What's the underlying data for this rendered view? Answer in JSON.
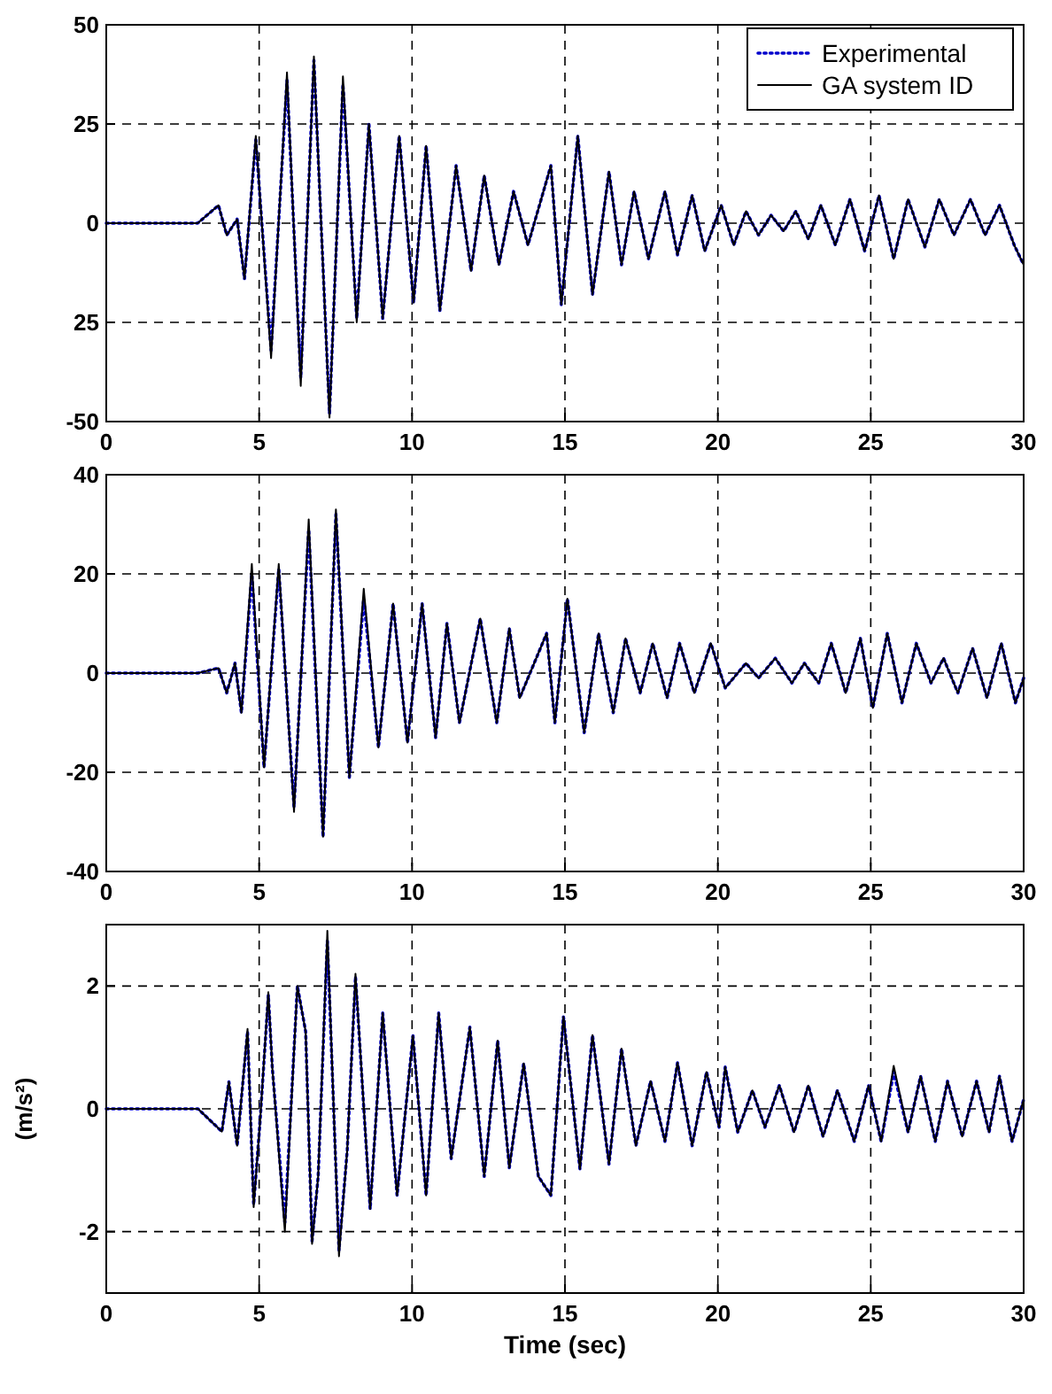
{
  "chart_data": [
    {
      "type": "line",
      "x": [
        0,
        1,
        2,
        2.99,
        3.67,
        3.94,
        4.28,
        4.52,
        4.89,
        5.39,
        5.91,
        6.36,
        6.79,
        7.3,
        7.74,
        8.19,
        8.59,
        9.04,
        9.58,
        10.05,
        10.46,
        10.91,
        11.44,
        11.93,
        12.36,
        12.84,
        13.32,
        13.79,
        14.54,
        14.88,
        15.42,
        15.9,
        16.44,
        16.85,
        17.26,
        17.73,
        18.27,
        18.68,
        19.16,
        19.57,
        20.11,
        20.52,
        20.92,
        21.33,
        21.74,
        22.15,
        22.55,
        22.96,
        23.37,
        23.84,
        24.32,
        24.8,
        25.27,
        25.75,
        26.22,
        26.77,
        27.24,
        27.72,
        28.26,
        28.74,
        29.21,
        29.69,
        30
      ],
      "series": [
        {
          "name": "Experimental",
          "color": "#0000cc",
          "line_style": "dotted",
          "values": [
            0,
            0,
            0,
            0,
            4.5,
            -3,
            1,
            -14,
            21,
            -32,
            36,
            -39,
            41,
            -48,
            35,
            -24,
            25,
            -24,
            22,
            -20,
            19.5,
            -22,
            14.5,
            -12,
            12,
            -10.5,
            8,
            -5.5,
            14.5,
            -20.5,
            22,
            -18,
            13,
            -10.5,
            8,
            -9,
            8,
            -8,
            7,
            -7,
            4.5,
            -5.5,
            3,
            -3,
            2,
            -2,
            3,
            -4,
            4.5,
            -5.5,
            6,
            -7,
            7,
            -9,
            6,
            -6,
            6,
            -3,
            6,
            -3,
            4.5,
            -5.5,
            -10.5
          ]
        },
        {
          "name": "GA system ID",
          "color": "#000000",
          "line_style": "solid",
          "values": [
            0,
            0,
            0,
            0,
            4.5,
            -3,
            1,
            -14,
            22,
            -34,
            38,
            -41,
            42,
            -49,
            37,
            -25,
            25,
            -24,
            22,
            -20,
            19.5,
            -22,
            14.5,
            -12,
            12,
            -10.5,
            8,
            -5.5,
            14.5,
            -20.5,
            22,
            -18,
            13,
            -10.5,
            8,
            -9,
            8,
            -8,
            7,
            -7,
            4.5,
            -5.5,
            3,
            -3,
            2,
            -2,
            3,
            -4,
            4.5,
            -5.5,
            6,
            -7,
            7,
            -9,
            6,
            -6,
            6,
            -3,
            6,
            -3,
            4.5,
            -5.5,
            -10.5
          ]
        }
      ],
      "xlim": [
        0,
        30
      ],
      "xticks": [
        0,
        5,
        10,
        15,
        20,
        25,
        30
      ],
      "ylim": [
        -50,
        50
      ],
      "yticks": [
        50,
        25,
        0,
        {
          "value": -25,
          "label": "25"
        },
        -50
      ],
      "grid": true,
      "legend": "top right"
    },
    {
      "type": "line",
      "x": [
        0,
        1,
        2,
        3,
        3.67,
        3.94,
        4.21,
        4.42,
        4.76,
        5.16,
        5.64,
        6.14,
        6.62,
        7.09,
        7.51,
        7.95,
        8.42,
        8.9,
        9.38,
        9.85,
        10.33,
        10.77,
        11.14,
        11.55,
        12.23,
        12.77,
        13.18,
        13.52,
        14.4,
        14.67,
        15.08,
        15.63,
        16.1,
        16.58,
        16.98,
        17.46,
        17.87,
        18.34,
        18.75,
        19.23,
        19.77,
        20.24,
        20.92,
        21.33,
        21.88,
        22.42,
        22.83,
        23.3,
        23.71,
        24.18,
        24.66,
        25.07,
        25.54,
        26.02,
        26.49,
        26.97,
        27.38,
        27.85,
        28.33,
        28.8,
        29.27,
        29.73,
        30
      ],
      "series": [
        {
          "color": "#0000cc",
          "line_style": "dotted",
          "values": [
            0,
            0,
            0,
            0,
            1,
            -4,
            2,
            -8,
            20,
            -19,
            21,
            -27,
            29,
            -33,
            32,
            -21,
            15,
            -15,
            14,
            -14,
            14,
            -13,
            10,
            -10,
            11,
            -10,
            9,
            -5,
            8,
            -10,
            15,
            -12,
            8,
            -8,
            7,
            -4,
            6,
            -5,
            6,
            -4,
            6,
            -3,
            2,
            -1,
            3,
            -2,
            2,
            -2,
            6,
            -4,
            7,
            -7,
            8,
            -6,
            6,
            -2,
            3,
            -4,
            5,
            -5,
            6,
            -6,
            -1
          ]
        },
        {
          "color": "#000000",
          "line_style": "solid",
          "values": [
            0,
            0,
            0,
            0,
            1,
            -4,
            2,
            -8,
            22,
            -19,
            22,
            -28,
            31,
            -33,
            33,
            -21,
            17,
            -15,
            14,
            -14,
            14,
            -13,
            10,
            -10,
            11,
            -10,
            9,
            -5,
            8,
            -10,
            15,
            -12,
            8,
            -8,
            7,
            -4,
            6,
            -5,
            6,
            -4,
            6,
            -3,
            2,
            -1,
            3,
            -2,
            2,
            -2,
            6,
            -4,
            7,
            -7,
            8,
            -6,
            6,
            -2,
            3,
            -4,
            5,
            -5,
            6,
            -6,
            -1
          ]
        }
      ],
      "xlim": [
        0,
        30
      ],
      "xticks": [
        0,
        5,
        10,
        15,
        20,
        25,
        30
      ],
      "ylim": [
        -40,
        40
      ],
      "yticks": [
        40,
        20,
        0,
        -20,
        -40
      ],
      "grid": true
    },
    {
      "type": "line",
      "x": [
        0,
        1,
        2,
        3,
        3.78,
        4.01,
        4.28,
        4.62,
        4.82,
        5.03,
        5.3,
        5.43,
        5.84,
        6.25,
        6.52,
        6.73,
        6.93,
        7.23,
        7.61,
        7.88,
        8.15,
        8.63,
        9.04,
        9.51,
        10.03,
        10.46,
        10.87,
        11.28,
        11.89,
        12.36,
        12.8,
        13.18,
        13.65,
        14.13,
        14.54,
        14.95,
        15.49,
        15.9,
        16.44,
        16.85,
        17.32,
        17.8,
        18.27,
        18.68,
        19.16,
        19.63,
        20.04,
        20.24,
        20.65,
        21.13,
        21.54,
        22.01,
        22.49,
        22.96,
        23.44,
        23.91,
        24.46,
        24.93,
        25.34,
        25.75,
        26.22,
        26.63,
        27.11,
        27.51,
        27.99,
        28.46,
        28.87,
        29.21,
        29.62,
        30
      ],
      "series": [
        {
          "color": "#0000cc",
          "line_style": "dotted",
          "values": [
            0,
            0,
            0,
            0,
            -0.37,
            0.44,
            -0.6,
            1.26,
            -1.56,
            -0.2,
            1.85,
            0.67,
            -1.85,
            2,
            1.26,
            -2.15,
            -1.1,
            2.74,
            -2.3,
            -0.67,
            2.15,
            -1.63,
            1.56,
            -1.41,
            1.19,
            -1.41,
            1.56,
            -0.81,
            1.33,
            -1.1,
            1.11,
            -0.96,
            0.74,
            -1.1,
            -1.41,
            1.5,
            -0.98,
            1.2,
            -0.9,
            0.98,
            -0.6,
            0.45,
            -0.53,
            0.75,
            -0.6,
            0.6,
            -0.3,
            0.68,
            -0.38,
            0.3,
            -0.3,
            0.38,
            -0.38,
            0.38,
            -0.45,
            0.3,
            -0.53,
            0.38,
            -0.53,
            0.6,
            -0.38,
            0.53,
            -0.53,
            0.45,
            -0.45,
            0.45,
            -0.38,
            0.53,
            -0.53,
            0.15
          ]
        },
        {
          "color": "#000000",
          "line_style": "solid",
          "values": [
            0,
            0,
            0,
            0,
            -0.37,
            0.44,
            -0.6,
            1.3,
            -1.6,
            -0.2,
            1.9,
            0.67,
            -2,
            2,
            1.26,
            -2.2,
            -1.1,
            2.9,
            -2.4,
            -0.67,
            2.2,
            -1.63,
            1.56,
            -1.41,
            1.19,
            -1.41,
            1.56,
            -0.81,
            1.33,
            -1.1,
            1.11,
            -0.96,
            0.74,
            -1.1,
            -1.41,
            1.5,
            -0.98,
            1.2,
            -0.9,
            0.98,
            -0.6,
            0.45,
            -0.53,
            0.75,
            -0.6,
            0.6,
            -0.3,
            0.68,
            -0.38,
            0.3,
            -0.3,
            0.38,
            -0.38,
            0.38,
            -0.45,
            0.3,
            -0.53,
            0.38,
            -0.53,
            0.7,
            -0.38,
            0.53,
            -0.53,
            0.45,
            -0.45,
            0.45,
            -0.38,
            0.53,
            -0.53,
            0.15
          ]
        }
      ],
      "xlim": [
        0,
        30
      ],
      "xticks": [
        0,
        5,
        10,
        15,
        20,
        25,
        30
      ],
      "ylim": [
        -3,
        3
      ],
      "yticks": [
        2,
        0,
        -2
      ],
      "grid": true,
      "xlabel": "Time (sec)",
      "ylabel": "(m/s²)"
    }
  ]
}
